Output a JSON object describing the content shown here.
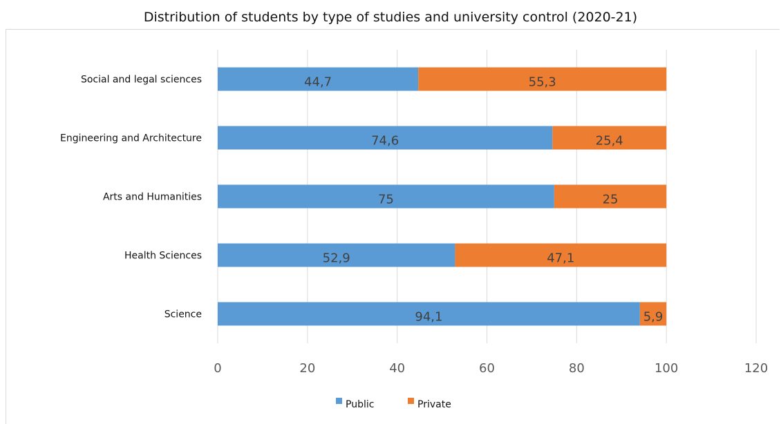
{
  "chart_data": {
    "type": "bar",
    "orientation": "horizontal",
    "stacked": true,
    "title": "Distribution of students by type of studies and university control (2020-21)",
    "categories": [
      "Social and legal sciences",
      "Engineering and Architecture",
      "Arts and Humanities",
      "Health Sciences",
      "Science"
    ],
    "series": [
      {
        "name": "Public",
        "color": "#5b9bd5",
        "values": [
          44.7,
          74.6,
          75,
          52.9,
          94.1
        ],
        "labels": [
          "44,7",
          "74,6",
          "75",
          "52,9",
          "94,1"
        ]
      },
      {
        "name": "Private",
        "color": "#ed7d31",
        "values": [
          55.3,
          25.4,
          25,
          47.1,
          5.9
        ],
        "labels": [
          "55,3",
          "25,4",
          "25",
          "47,1",
          "5,9"
        ]
      }
    ],
    "xlim": [
      0,
      120
    ],
    "xticks": [
      "0",
      "20",
      "40",
      "60",
      "80",
      "100",
      "120"
    ],
    "grid": true,
    "legend": "bottom"
  }
}
